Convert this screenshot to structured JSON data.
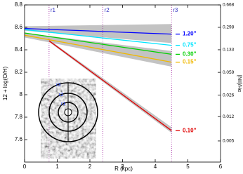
{
  "chart_data": {
    "type": "line",
    "xlabel": "R (kpc)",
    "ylabel": "12 + log(O/H)",
    "y2label": "[NII]/Hα",
    "xlim": [
      0,
      6
    ],
    "xticks": [
      0,
      1,
      2,
      3,
      4,
      5,
      6
    ],
    "ylim": [
      7.4,
      8.8
    ],
    "yticks": [
      7.6,
      7.8,
      8.0,
      8.2,
      8.4,
      8.6,
      8.8
    ],
    "y2lim": [
      0.00234,
      0.668
    ],
    "y2scale": "log",
    "y2ticks": [
      0.005,
      0.012,
      0.026,
      0.059,
      0.133,
      0.298,
      0.668
    ],
    "vlines": [
      {
        "x": 0.75,
        "label": "r1"
      },
      {
        "x": 2.4,
        "label": "r2"
      },
      {
        "x": 4.5,
        "label": "r3"
      }
    ],
    "band_color": "#b8b8b8",
    "series": [
      {
        "name": "1.20\"",
        "color": "#0000ff",
        "x": [
          0,
          4.5
        ],
        "values": [
          8.59,
          8.54
        ],
        "lower": [
          8.57,
          8.46
        ],
        "upper": [
          8.61,
          8.63
        ]
      },
      {
        "name": "0.75\"",
        "color": "#00e5ff",
        "x": [
          0,
          4.5
        ],
        "values": [
          8.58,
          8.44
        ]
      },
      {
        "name": "0.30\"",
        "color": "#00d000",
        "x": [
          0,
          4.5
        ],
        "values": [
          8.55,
          8.36
        ]
      },
      {
        "name": "0.15\"",
        "color": "#f0b800",
        "x": [
          0,
          4.5
        ],
        "values": [
          8.53,
          8.29
        ],
        "lower": [
          8.51,
          8.25
        ],
        "upper": [
          8.55,
          8.39
        ]
      },
      {
        "name": "0.10\"",
        "color": "#e00000",
        "x": [
          0.75,
          4.5
        ],
        "values": [
          8.48,
          7.68
        ],
        "lower": [
          8.47,
          7.66
        ],
        "upper": [
          8.49,
          7.71
        ]
      }
    ],
    "inset": {
      "labels": [
        "r1",
        "r2",
        "r3"
      ]
    }
  }
}
